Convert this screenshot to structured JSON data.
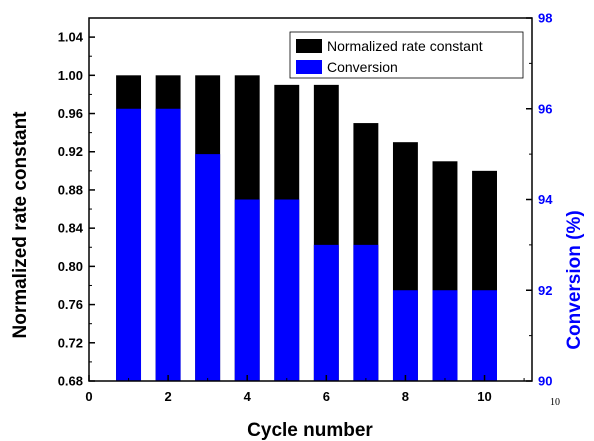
{
  "chart_data": {
    "type": "bar",
    "x": [
      1,
      2,
      3,
      4,
      5,
      6,
      7,
      8,
      9,
      10
    ],
    "series": [
      {
        "name": "Normalized rate constant",
        "axis": "left",
        "color": "#000000",
        "values": [
          1.0,
          1.0,
          1.0,
          1.0,
          0.99,
          0.99,
          0.95,
          0.93,
          0.91,
          0.9
        ]
      },
      {
        "name": "Conversion",
        "axis": "right",
        "color": "#0000ff",
        "values": [
          96,
          96,
          95,
          94,
          94,
          93,
          93,
          92,
          92,
          92
        ]
      }
    ],
    "xlabel": "Cycle number",
    "ylabel": "Normalized rate constant",
    "y2label": "Conversion (%)",
    "xlim": [
      0,
      11.2
    ],
    "ylim": [
      0.68,
      1.06
    ],
    "y2lim": [
      90,
      98
    ],
    "xticks": [
      "0",
      "2",
      "4",
      "6",
      "8",
      "10"
    ],
    "yticks": [
      "0.68",
      "0.72",
      "0.76",
      "0.80",
      "0.84",
      "0.88",
      "0.92",
      "0.96",
      "1.00",
      "1.04"
    ],
    "y2ticks": [
      "90",
      "92",
      "94",
      "96",
      "98"
    ],
    "extra_text": "10",
    "legend_position": "top-right",
    "right_axis_color": "#0000ff"
  }
}
